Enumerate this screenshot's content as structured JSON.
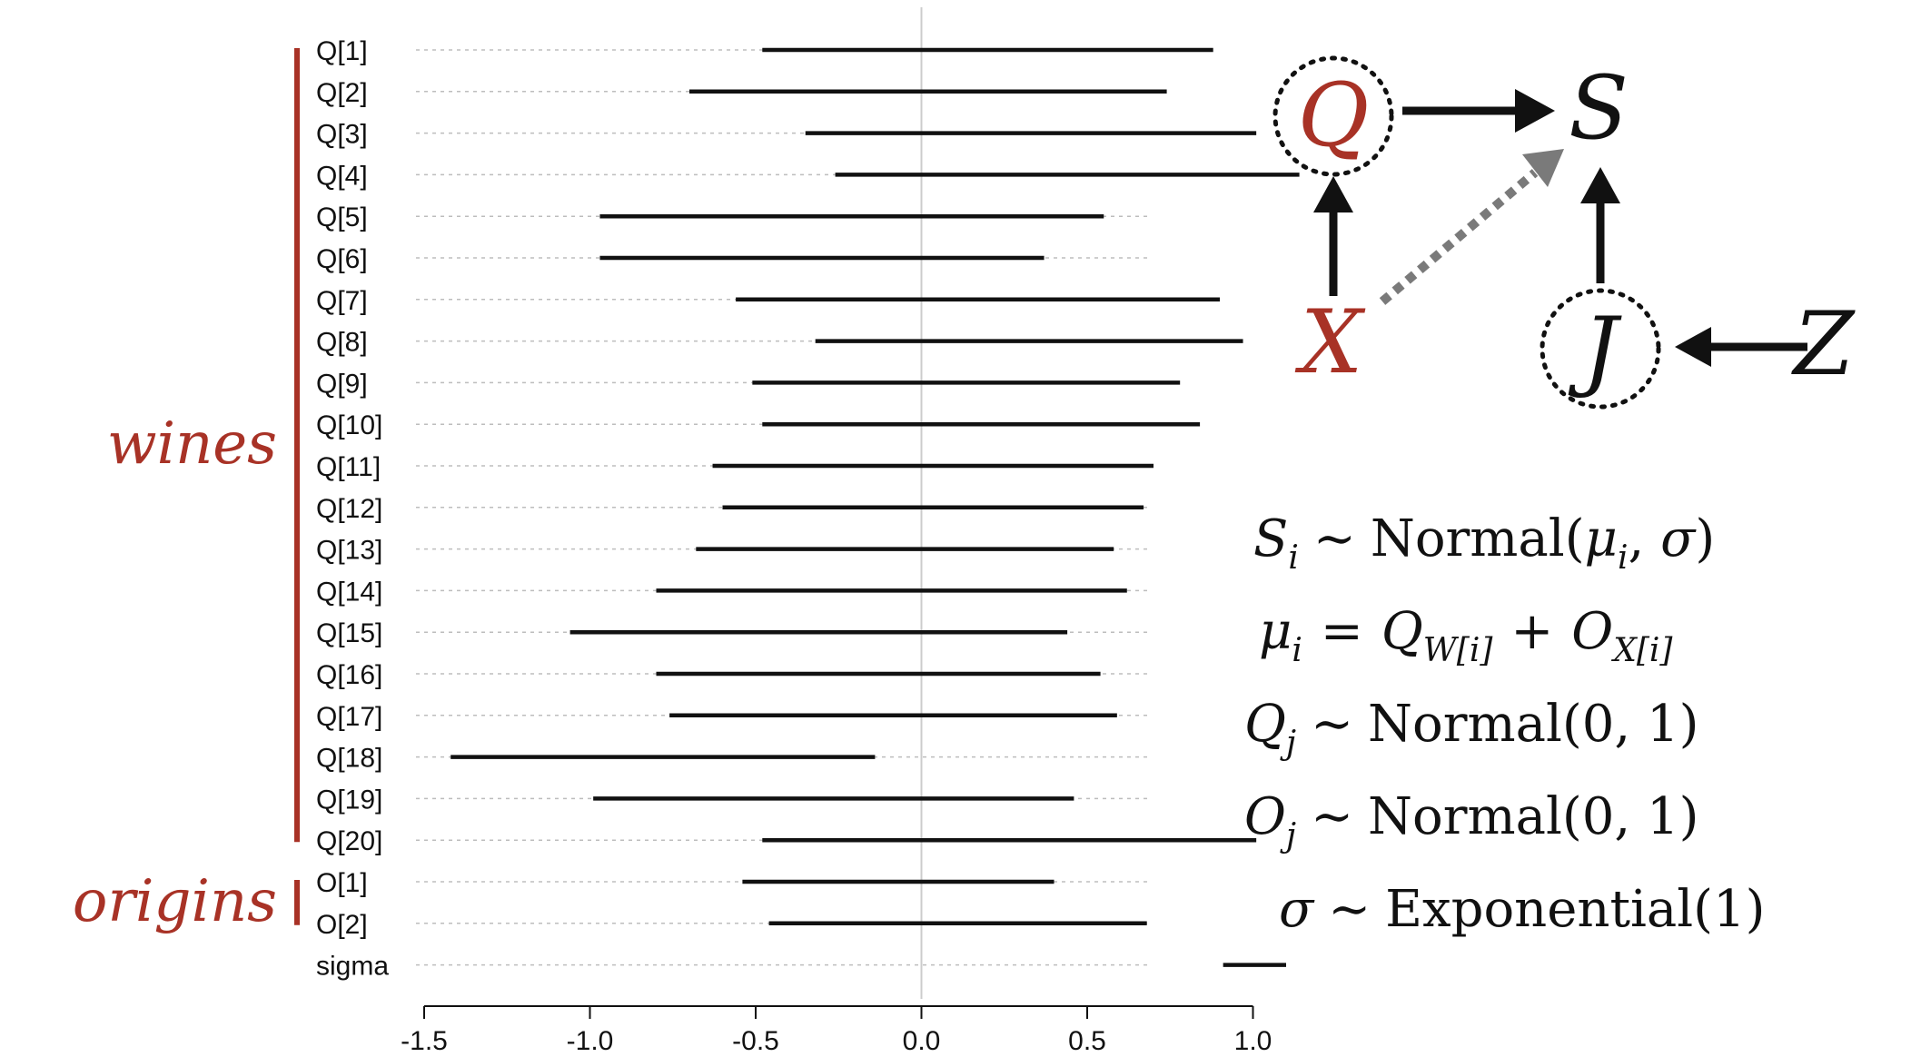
{
  "colors": {
    "accent": "#a83226",
    "line": "#111111",
    "guide": "#bdbdbd",
    "zero": "#cccccc",
    "arrow_dashed": "#7a7a7a"
  },
  "chart_data": {
    "type": "interval",
    "rows": [
      {
        "label": "Q[1]",
        "low": -0.48,
        "high": 0.88
      },
      {
        "label": "Q[2]",
        "low": -0.7,
        "high": 0.74
      },
      {
        "label": "Q[3]",
        "low": -0.35,
        "high": 1.01
      },
      {
        "label": "Q[4]",
        "low": -0.26,
        "high": 1.14
      },
      {
        "label": "Q[5]",
        "low": -0.97,
        "high": 0.55
      },
      {
        "label": "Q[6]",
        "low": -0.97,
        "high": 0.37
      },
      {
        "label": "Q[7]",
        "low": -0.56,
        "high": 0.9
      },
      {
        "label": "Q[8]",
        "low": -0.32,
        "high": 0.97
      },
      {
        "label": "Q[9]",
        "low": -0.51,
        "high": 0.78
      },
      {
        "label": "Q[10]",
        "low": -0.48,
        "high": 0.84
      },
      {
        "label": "Q[11]",
        "low": -0.63,
        "high": 0.7
      },
      {
        "label": "Q[12]",
        "low": -0.6,
        "high": 0.67
      },
      {
        "label": "Q[13]",
        "low": -0.68,
        "high": 0.58
      },
      {
        "label": "Q[14]",
        "low": -0.8,
        "high": 0.62
      },
      {
        "label": "Q[15]",
        "low": -1.06,
        "high": 0.44
      },
      {
        "label": "Q[16]",
        "low": -0.8,
        "high": 0.54
      },
      {
        "label": "Q[17]",
        "low": -0.76,
        "high": 0.59
      },
      {
        "label": "Q[18]",
        "low": -1.42,
        "high": -0.14
      },
      {
        "label": "Q[19]",
        "low": -0.99,
        "high": 0.46
      },
      {
        "label": "Q[20]",
        "low": -0.48,
        "high": 1.01
      },
      {
        "label": "O[1]",
        "low": -0.54,
        "high": 0.4
      },
      {
        "label": "O[2]",
        "low": -0.46,
        "high": 0.68
      },
      {
        "label": "sigma",
        "low": 0.91,
        "high": 1.1
      }
    ],
    "xlim": [
      -1.5,
      1.2
    ],
    "xticks": [
      -1.5,
      -1.0,
      -0.5,
      0.0,
      0.5,
      1.0
    ],
    "xtick_labels": [
      "-1.5",
      "-1.0",
      "-0.5",
      "0.0",
      "0.5",
      "1.0"
    ],
    "reference_line": 0.0,
    "groups": [
      {
        "label": "wines",
        "from": "Q[1]",
        "to": "Q[20]"
      },
      {
        "label": "origins",
        "from": "O[1]",
        "to": "O[2]"
      }
    ]
  },
  "diagram": {
    "nodes": {
      "Q": "Q",
      "S": "S",
      "X": "X",
      "J": "J",
      "Z": "Z"
    }
  },
  "equations": {
    "line1": {
      "lhs": "S",
      "sub": "i",
      "rel": "∼",
      "rhs": "Normal(",
      "arg1": "μ",
      "arg1_sub": "i",
      "sep": ", ",
      "arg2": "σ",
      "close": ")"
    },
    "line2": {
      "lhs": "μ",
      "sub": "i",
      "rel": "=",
      "t1": "Q",
      "t1_sub": "W[i]",
      "plus": "+",
      "t2": "O",
      "t2_sub": "X[i]"
    },
    "line3": {
      "lhs": "Q",
      "sub": "j",
      "rel": "∼",
      "rhs": "Normal(0, 1)"
    },
    "line4": {
      "lhs": "O",
      "sub": "j",
      "rel": "∼",
      "rhs": "Normal(0, 1)"
    },
    "line5": {
      "lhs": "σ",
      "rel": "∼",
      "rhs": "Exponential(1)"
    }
  }
}
